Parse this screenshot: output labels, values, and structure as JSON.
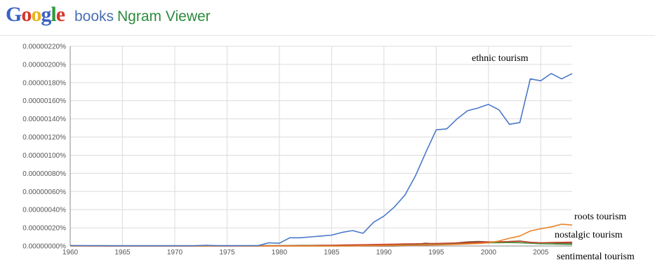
{
  "header": {
    "logo_letters": [
      {
        "ch": "G",
        "color": "#3a62c4"
      },
      {
        "ch": "o",
        "color": "#d6362b"
      },
      {
        "ch": "o",
        "color": "#e8b21b"
      },
      {
        "ch": "g",
        "color": "#3a62c4"
      },
      {
        "ch": "l",
        "color": "#2e9a3e"
      },
      {
        "ch": "e",
        "color": "#d6362b"
      }
    ],
    "books_label": "books",
    "ngram_label": "Ngram Viewer"
  },
  "chart_data": {
    "type": "line",
    "xlim": [
      1960,
      2008
    ],
    "ylim": [
      0,
      2.2e-06
    ],
    "x_ticks": [
      1960,
      1965,
      1970,
      1975,
      1980,
      1985,
      1990,
      1995,
      2000,
      2005
    ],
    "y_ticks": [
      "0.00000000%",
      "0.00000020%",
      "0.00000040%",
      "0.00000060%",
      "0.00000080%",
      "0.00000100%",
      "0.00000120%",
      "0.00000140%",
      "0.00000160%",
      "0.00000180%",
      "0.00000200%",
      "0.00000220%"
    ],
    "grid": true,
    "x": [
      1960,
      1961,
      1962,
      1963,
      1964,
      1965,
      1966,
      1967,
      1968,
      1969,
      1970,
      1971,
      1972,
      1973,
      1974,
      1975,
      1976,
      1977,
      1978,
      1979,
      1980,
      1981,
      1982,
      1983,
      1984,
      1985,
      1986,
      1987,
      1988,
      1989,
      1990,
      1991,
      1992,
      1993,
      1994,
      1995,
      1996,
      1997,
      1998,
      1999,
      2000,
      2001,
      2002,
      2003,
      2004,
      2005,
      2006,
      2007,
      2008
    ],
    "series": [
      {
        "name": "ethnic tourism",
        "color": "#4a78c8",
        "values": [
          5e-09,
          4e-09,
          3e-09,
          3e-09,
          2e-09,
          2e-09,
          2e-09,
          2e-09,
          2e-09,
          2e-09,
          2e-09,
          2e-09,
          3e-09,
          8e-09,
          3e-09,
          3e-09,
          3e-09,
          4e-09,
          5e-09,
          3.5e-08,
          3e-08,
          9e-08,
          9e-08,
          1e-07,
          1.1e-07,
          1.2e-07,
          1.5e-07,
          1.7e-07,
          1.4e-07,
          2.6e-07,
          3.3e-07,
          4.3e-07,
          5.6e-07,
          7.7e-07,
          1.03e-06,
          1.28e-06,
          1.29e-06,
          1.4e-06,
          1.49e-06,
          1.52e-06,
          1.56e-06,
          1.5e-06,
          1.34e-06,
          1.36e-06,
          1.84e-06,
          1.82e-06,
          1.9e-06,
          1.84e-06,
          1.9e-06
        ]
      },
      {
        "name": "roots tourism",
        "color": "#e8822a",
        "values": [
          0,
          0,
          0,
          0,
          0,
          0,
          0,
          0,
          0,
          0,
          0,
          0,
          0,
          0,
          0,
          0,
          0,
          0,
          0,
          0,
          0,
          0,
          0,
          0,
          0,
          0,
          0,
          0,
          5e-09,
          5e-09,
          6e-09,
          6e-09,
          8e-09,
          8e-09,
          1e-08,
          1.2e-08,
          1.5e-08,
          1.8e-08,
          2.2e-08,
          2.8e-08,
          3.5e-08,
          5.5e-08,
          8.5e-08,
          1.1e-07,
          1.65e-07,
          1.9e-07,
          2.1e-07,
          2.4e-07,
          2.3e-07
        ]
      },
      {
        "name": "nostalgic tourism",
        "color": "#c8402c",
        "values": [
          2e-09,
          2e-09,
          1e-09,
          1e-09,
          1e-09,
          1e-09,
          1e-09,
          1e-09,
          1e-09,
          1e-09,
          1e-09,
          1e-09,
          1e-09,
          1e-09,
          1e-09,
          1e-09,
          1e-09,
          1e-09,
          1e-09,
          2e-09,
          2e-09,
          3e-09,
          4e-09,
          5e-09,
          6e-09,
          8e-09,
          1e-08,
          1.2e-08,
          1.4e-08,
          1.6e-08,
          1.8e-08,
          2e-08,
          2.2e-08,
          2.4e-08,
          2.6e-08,
          2.8e-08,
          3e-08,
          3.3e-08,
          3.6e-08,
          4e-08,
          4.4e-08,
          4.6e-08,
          4.8e-08,
          5e-08,
          4e-08,
          3.5e-08,
          3.8e-08,
          4e-08,
          4.2e-08
        ]
      },
      {
        "name": "sentimental tourism",
        "color": "#3f9a45",
        "values": [
          2e-09,
          2e-09,
          2e-09,
          2e-09,
          2e-09,
          2e-09,
          2e-09,
          2e-09,
          2e-09,
          2e-09,
          2e-09,
          2e-09,
          2e-09,
          5e-09,
          2e-09,
          2e-09,
          2e-09,
          2e-09,
          3e-09,
          3e-09,
          4e-09,
          5e-09,
          6e-09,
          6e-09,
          7e-09,
          8e-09,
          8e-09,
          9e-09,
          1e-08,
          1.2e-08,
          1.4e-08,
          1.6e-08,
          1.8e-08,
          2e-08,
          2.2e-08,
          2.4e-08,
          2.6e-08,
          2.8e-08,
          3e-08,
          3.3e-08,
          3.5e-08,
          3.6e-08,
          3.8e-08,
          3.5e-08,
          3e-08,
          2.5e-08,
          2.2e-08,
          2e-08,
          1.8e-08
        ]
      },
      {
        "name": "",
        "color": "#7a5a3a",
        "values": [
          0,
          0,
          0,
          0,
          0,
          0,
          0,
          0,
          0,
          0,
          0,
          0,
          0,
          0,
          0,
          0,
          0,
          0,
          0,
          0,
          0,
          0,
          0,
          0,
          0,
          0,
          0,
          0,
          0,
          0,
          0,
          0,
          5e-09,
          1.5e-08,
          3e-08,
          2e-08,
          2.5e-08,
          3.5e-08,
          4.5e-08,
          5e-08,
          4.5e-08,
          4e-08,
          5e-08,
          5.5e-08,
          4e-08,
          3.5e-08,
          3.5e-08,
          3e-08,
          3e-08
        ]
      }
    ],
    "annotations": [
      {
        "text": "ethnic tourism"
      },
      {
        "text": "roots tourism"
      },
      {
        "text": "nostalgic tourism"
      },
      {
        "text": "sentimental tourism"
      }
    ]
  }
}
